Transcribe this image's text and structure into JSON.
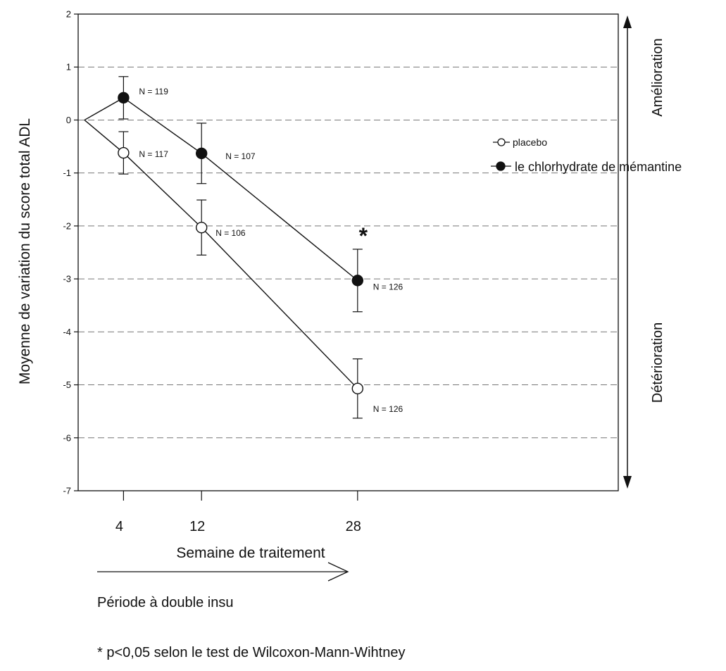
{
  "chart_data": {
    "type": "line",
    "title": "",
    "xlabel": "Semaine de traitement",
    "ylabel": "Moyenne de variation du score total ADL",
    "ylim": [
      -7,
      2
    ],
    "yticks": [
      "2",
      "1",
      "0",
      "-1",
      "-2",
      "-3",
      "-4",
      "-5",
      "-6",
      "-7"
    ],
    "xticks": [
      "4",
      "12",
      "28"
    ],
    "grid": "horizontal dashed",
    "legend_position": "right",
    "series": [
      {
        "name": "placebo",
        "marker": "open-circle",
        "x": [
          0,
          4,
          12,
          28
        ],
        "y": [
          0,
          -0.62,
          -2.03,
          -5.07
        ],
        "error": [
          null,
          0.4,
          0.52,
          0.56
        ],
        "n_labels": [
          "",
          "N = 117",
          "N = 106",
          "N = 126"
        ]
      },
      {
        "name": "le chlorhydrate de mémantine",
        "marker": "filled-circle",
        "x": [
          0,
          4,
          12,
          28
        ],
        "y": [
          0,
          0.42,
          -0.63,
          -3.03
        ],
        "error": [
          null,
          0.4,
          0.57,
          0.59
        ],
        "n_labels": [
          "",
          "N = 119",
          "N = 107",
          "N = 126"
        ]
      }
    ],
    "annotations": {
      "significance_marker": "*",
      "upper_side": "Amélioration",
      "lower_side": "Détérioration",
      "period": "Période à double insu",
      "footnote": "* p<0,05 selon le test de Wilcoxon-Mann-Wihtney"
    }
  }
}
